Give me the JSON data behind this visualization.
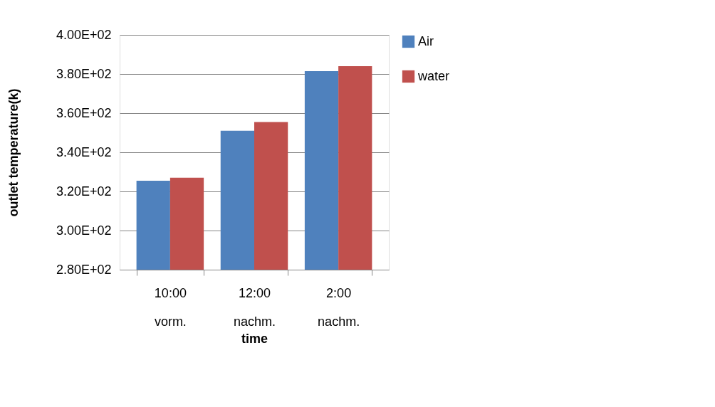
{
  "chart_data": {
    "type": "bar",
    "xlabel": "time",
    "ylabel": "outlet temperature(k)",
    "categories": [
      "10:00\nvorm.",
      "12:00\nnachm.",
      "2:00\nnachm."
    ],
    "series": [
      {
        "name": "Air",
        "color": "#4f81bd",
        "values": [
          325.5,
          351,
          381.5
        ]
      },
      {
        "name": "water",
        "color": "#c0504d",
        "values": [
          327,
          355.5,
          384
        ]
      }
    ],
    "ylim": [
      280,
      400
    ],
    "yticks": [
      {
        "value": 280,
        "label": "2.80E+02"
      },
      {
        "value": 300,
        "label": "3.00E+02"
      },
      {
        "value": 320,
        "label": "3.20E+02"
      },
      {
        "value": 340,
        "label": "3.40E+02"
      },
      {
        "value": 360,
        "label": "3.60E+02"
      },
      {
        "value": 380,
        "label": "3.80E+02"
      },
      {
        "value": 400,
        "label": "4.00E+02"
      }
    ],
    "grid": "y",
    "legend": "right"
  }
}
